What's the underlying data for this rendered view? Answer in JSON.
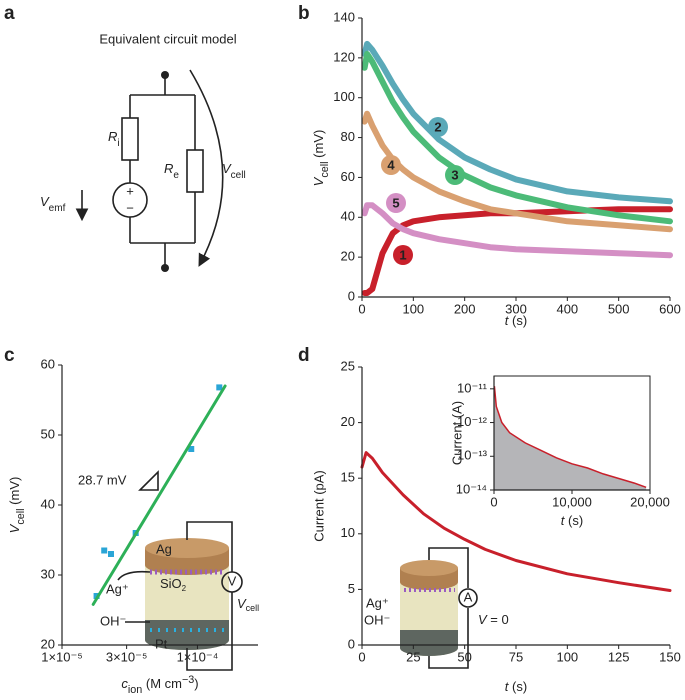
{
  "panel_labels": [
    "a",
    "b",
    "c",
    "d"
  ],
  "diagram_a": {
    "title": "Equivalent circuit model",
    "r_i": [
      "R",
      "i"
    ],
    "r_e": [
      "R",
      "e"
    ],
    "v_emf": [
      "V",
      "emf"
    ],
    "v_cell": [
      "V",
      "cell"
    ],
    "plus": "+",
    "minus": "−"
  },
  "inset_c": {
    "ag": "Ag",
    "ag_ion": "Ag⁺",
    "sio2": [
      "SiO",
      "2"
    ],
    "oh": "OH⁻",
    "pt": "Pt",
    "meter": "V",
    "v_cell": [
      "V",
      "cell"
    ]
  },
  "inset_d": {
    "ag_ion": "Ag⁺",
    "oh": "OH⁻",
    "meter": "A",
    "v": [
      "V",
      " = 0"
    ]
  },
  "chart_data": [
    {
      "type": "line",
      "x_label": [
        "t",
        " (s)"
      ],
      "y_label": [
        "V",
        "cell",
        " (mV)"
      ],
      "x": [
        5,
        10,
        20,
        40,
        60,
        80,
        100,
        150,
        200,
        250,
        300,
        400,
        500,
        600
      ],
      "xlim": [
        0,
        600
      ],
      "xticks": [
        0,
        100,
        200,
        300,
        400,
        500,
        600
      ],
      "ylim": [
        0,
        140
      ],
      "yticks": [
        0,
        20,
        40,
        60,
        80,
        100,
        120,
        140
      ],
      "series": [
        {
          "name": "1",
          "color": "#c8202b",
          "values": [
            2,
            2,
            4,
            22,
            32,
            36,
            38,
            40,
            41,
            42,
            42,
            43,
            44,
            44
          ]
        },
        {
          "name": "2",
          "color": "#5aa9b8",
          "values": [
            122,
            127,
            124,
            116,
            107,
            99,
            92,
            79,
            70,
            64,
            59,
            53,
            50,
            48
          ]
        },
        {
          "name": "3",
          "color": "#4cbb78",
          "values": [
            115,
            122,
            118,
            108,
            98,
            90,
            83,
            70,
            61,
            55,
            51,
            45,
            41,
            38
          ]
        },
        {
          "name": "4",
          "color": "#d9a070",
          "values": [
            88,
            92,
            86,
            76,
            69,
            64,
            60,
            53,
            48,
            44,
            42,
            38,
            36,
            34
          ]
        },
        {
          "name": "5",
          "color": "#d48fc4",
          "values": [
            42,
            46,
            46,
            42,
            37,
            34,
            32,
            29,
            27,
            25,
            24,
            23,
            22,
            21
          ]
        }
      ]
    },
    {
      "type": "scatter",
      "x_label": [
        "c",
        "ion",
        " (M cm",
        "−3",
        ")"
      ],
      "y_label": [
        "V",
        "cell",
        " (mV)"
      ],
      "xscale": "log",
      "xlim": [
        1e-05,
        0.00028
      ],
      "xticks": [
        {
          "value": 1e-05,
          "label": "1×10⁻⁵"
        },
        {
          "value": 3e-05,
          "label": "3×10⁻⁵"
        },
        {
          "value": 0.0001,
          "label": "1×10⁻⁴"
        }
      ],
      "ylim": [
        20,
        60
      ],
      "yticks": [
        20,
        30,
        40,
        50,
        60
      ],
      "annotation": "28.7 mV",
      "series": [
        {
          "type": "scatter",
          "color": "#2aa5d6",
          "x": [
            1.8e-05,
            2.05e-05,
            2.3e-05,
            3.5e-05,
            9e-05,
            0.000145
          ],
          "values": [
            27,
            33.5,
            33,
            36,
            48,
            56.8
          ]
        },
        {
          "type": "line",
          "color": "#2db058",
          "x": [
            1.7e-05,
            0.00016
          ],
          "values": [
            25.8,
            57
          ]
        }
      ]
    },
    {
      "type": "line",
      "x_label": [
        "t",
        " (s)"
      ],
      "y_label": "Current (pA)",
      "xlim": [
        0,
        150
      ],
      "xticks": [
        0,
        25,
        50,
        75,
        100,
        125,
        150
      ],
      "ylim": [
        0,
        25
      ],
      "yticks": [
        0,
        5,
        10,
        15,
        20,
        25
      ],
      "series": [
        {
          "color": "#c8202b",
          "x": [
            0,
            2,
            5,
            10,
            20,
            30,
            40,
            50,
            60,
            75,
            100,
            125,
            150
          ],
          "values": [
            16,
            17.3,
            16.8,
            15.5,
            13.5,
            11.8,
            10.5,
            9.5,
            8.6,
            7.6,
            6.4,
            5.6,
            4.9
          ]
        }
      ]
    },
    {
      "type": "area",
      "x_label": [
        "t",
        " (s)"
      ],
      "y_label": "Current (A)",
      "xlim": [
        0,
        20000
      ],
      "xticks": [
        0,
        {
          "value": 10000,
          "label": "10,000"
        },
        {
          "value": 20000,
          "label": "20,000"
        }
      ],
      "yscale": "log",
      "ylim": [
        1e-14,
        2.4e-11
      ],
      "yticks": [
        {
          "value": 1e-14,
          "label": "10⁻¹⁴"
        },
        {
          "value": 1e-13,
          "label": "10⁻¹³"
        },
        {
          "value": 1e-12,
          "label": "10⁻¹²"
        },
        {
          "value": 1e-11,
          "label": "10⁻¹¹"
        }
      ],
      "series": [
        {
          "color": "#c8202b",
          "fill": "#b5b5b8",
          "x": [
            50,
            300,
            1000,
            2000,
            4000,
            6000,
            8000,
            10000,
            12000,
            14000,
            16000,
            18000,
            19500
          ],
          "values": [
            1.2e-11,
            3e-12,
            1e-12,
            5e-13,
            2.5e-13,
            1.5e-13,
            9e-14,
            6e-14,
            4.5e-14,
            3e-14,
            2.2e-14,
            1.6e-14,
            1.2e-14
          ]
        }
      ]
    }
  ]
}
